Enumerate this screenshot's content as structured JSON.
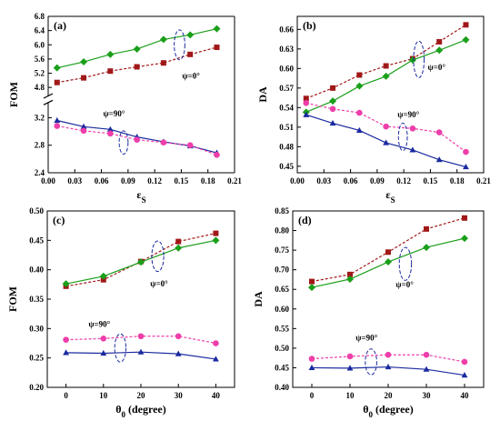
{
  "chart_data": [
    {
      "type": "line",
      "panel_label": "(a)",
      "xlabel": "εS",
      "ylabel": "FOM",
      "xlim": [
        0.0,
        0.21
      ],
      "x_ticks": [
        "0.00",
        "0.03",
        "0.06",
        "0.09",
        "0.12",
        "0.15",
        "0.18",
        "0.21"
      ],
      "y_broken_axis": true,
      "ylim_upper": [
        4.6,
        6.8
      ],
      "ylim_lower": [
        2.4,
        3.4
      ],
      "y_ticks_upper": [
        "4.8",
        "5.2",
        "5.6",
        "6.0",
        "6.4",
        "6.8"
      ],
      "y_ticks_lower": [
        "2.4",
        "2.8",
        "3.2"
      ],
      "x": [
        0.01,
        0.04,
        0.07,
        0.1,
        0.13,
        0.16,
        0.19
      ],
      "series": [
        {
          "group": "upper",
          "color": "#1a9f1a",
          "marker": "diamond",
          "dash": false,
          "values": [
            5.35,
            5.52,
            5.73,
            5.88,
            6.15,
            6.28,
            6.45
          ]
        },
        {
          "group": "upper",
          "color": "#a01818",
          "marker": "square",
          "dash": true,
          "values": [
            4.94,
            5.07,
            5.26,
            5.38,
            5.49,
            5.73,
            5.93
          ]
        },
        {
          "group": "lower",
          "color": "#1a2a9f",
          "marker": "triangle",
          "dash": false,
          "values": [
            3.16,
            3.07,
            3.03,
            2.92,
            2.85,
            2.79,
            2.69
          ]
        },
        {
          "group": "lower",
          "color": "#ee3eaa",
          "marker": "circle",
          "dash": true,
          "values": [
            3.08,
            3.01,
            2.97,
            2.88,
            2.84,
            2.8,
            2.66
          ]
        }
      ],
      "annotations": [
        {
          "text": "ψ=0°",
          "x": 0.151,
          "y": 5.05,
          "group": "upper"
        },
        {
          "text": "ψ=90°",
          "x": 0.062,
          "y": 3.22,
          "group": "lower"
        }
      ],
      "ellipses": [
        {
          "cx": 0.148,
          "cy": 6.0,
          "group": "upper",
          "rx": 0.006,
          "ry": 0.42
        },
        {
          "cx": 0.085,
          "cy": 2.84,
          "group": "lower",
          "rx": 0.005,
          "ry": 0.17
        }
      ]
    },
    {
      "type": "line",
      "panel_label": "(b)",
      "xlabel": "εS",
      "ylabel": "DA",
      "xlim": [
        0.0,
        0.21
      ],
      "x_ticks": [
        "0.00",
        "0.03",
        "0.06",
        "0.09",
        "0.12",
        "0.15",
        "0.18",
        "0.21"
      ],
      "ylim": [
        0.44,
        0.68
      ],
      "y_ticks": [
        "0.45",
        "0.48",
        "0.51",
        "0.54",
        "0.57",
        "0.60",
        "0.63",
        "0.66"
      ],
      "x": [
        0.01,
        0.04,
        0.07,
        0.1,
        0.13,
        0.16,
        0.19
      ],
      "series": [
        {
          "color": "#a01818",
          "marker": "square",
          "dash": true,
          "values": [
            0.554,
            0.57,
            0.59,
            0.604,
            0.615,
            0.641,
            0.667
          ]
        },
        {
          "color": "#1a9f1a",
          "marker": "diamond",
          "dash": false,
          "values": [
            0.533,
            0.55,
            0.573,
            0.588,
            0.613,
            0.628,
            0.644
          ]
        },
        {
          "color": "#ee3eaa",
          "marker": "circle",
          "dash": true,
          "values": [
            0.547,
            0.538,
            0.532,
            0.511,
            0.508,
            0.502,
            0.472
          ]
        },
        {
          "color": "#1a2a9f",
          "marker": "triangle",
          "dash": false,
          "values": [
            0.529,
            0.516,
            0.505,
            0.486,
            0.475,
            0.46,
            0.449
          ]
        }
      ],
      "annotations": [
        {
          "text": "ψ=0°",
          "x": 0.147,
          "y": 0.598
        },
        {
          "text": "ψ=90°",
          "x": 0.113,
          "y": 0.525
        }
      ],
      "ellipses": [
        {
          "cx": 0.137,
          "cy": 0.614,
          "rx": 0.006,
          "ry": 0.028
        },
        {
          "cx": 0.119,
          "cy": 0.495,
          "rx": 0.005,
          "ry": 0.021
        }
      ]
    },
    {
      "type": "line",
      "panel_label": "(c)",
      "xlabel": "θ0 (degree)",
      "ylabel": "FOM",
      "xlim": [
        -5,
        45
      ],
      "x_ticks": [
        "0",
        "10",
        "20",
        "30",
        "40"
      ],
      "ylim": [
        0.2,
        0.5
      ],
      "y_ticks": [
        "0.20",
        "0.25",
        "0.30",
        "0.35",
        "0.40",
        "0.45",
        "0.50"
      ],
      "x": [
        0,
        10,
        20,
        30,
        40
      ],
      "series": [
        {
          "color": "#a01818",
          "marker": "square",
          "dash": true,
          "values": [
            0.372,
            0.383,
            0.414,
            0.448,
            0.462
          ]
        },
        {
          "color": "#1a9f1a",
          "marker": "diamond",
          "dash": false,
          "values": [
            0.376,
            0.389,
            0.413,
            0.437,
            0.45
          ]
        },
        {
          "color": "#ee3eaa",
          "marker": "circle",
          "dash": true,
          "values": [
            0.281,
            0.283,
            0.287,
            0.287,
            0.275
          ]
        },
        {
          "color": "#1a2a9f",
          "marker": "triangle",
          "dash": false,
          "values": [
            0.259,
            0.258,
            0.26,
            0.257,
            0.248
          ]
        }
      ],
      "annotations": [
        {
          "text": "ψ=0°",
          "x": 22.5,
          "y": 0.372
        },
        {
          "text": "ψ=90°",
          "x": 6.0,
          "y": 0.303
        }
      ],
      "ellipses": [
        {
          "cx": 24.5,
          "cy": 0.423,
          "rx": 1.6,
          "ry": 0.026
        },
        {
          "cx": 14.5,
          "cy": 0.267,
          "rx": 1.5,
          "ry": 0.024
        }
      ]
    },
    {
      "type": "line",
      "panel_label": "(d)",
      "xlabel": "θ0 (degree)",
      "ylabel": "DA",
      "xlim": [
        -5,
        45
      ],
      "x_ticks": [
        "0",
        "10",
        "20",
        "30",
        "40"
      ],
      "ylim": [
        0.4,
        0.85
      ],
      "y_ticks": [
        "0.40",
        "0.45",
        "0.50",
        "0.55",
        "0.60",
        "0.65",
        "0.70",
        "0.75",
        "0.80",
        "0.85"
      ],
      "x": [
        0,
        10,
        20,
        30,
        40
      ],
      "series": [
        {
          "color": "#a01818",
          "marker": "square",
          "dash": true,
          "values": [
            0.67,
            0.688,
            0.745,
            0.804,
            0.832
          ]
        },
        {
          "color": "#1a9f1a",
          "marker": "diamond",
          "dash": false,
          "values": [
            0.655,
            0.676,
            0.72,
            0.757,
            0.78
          ]
        },
        {
          "color": "#ee3eaa",
          "marker": "circle",
          "dash": true,
          "values": [
            0.473,
            0.479,
            0.483,
            0.483,
            0.465
          ]
        },
        {
          "color": "#1a2a9f",
          "marker": "triangle",
          "dash": false,
          "values": [
            0.45,
            0.449,
            0.452,
            0.446,
            0.431
          ]
        }
      ],
      "annotations": [
        {
          "text": "ψ=0°",
          "x": 22.0,
          "y": 0.655
        },
        {
          "text": "ψ=90°",
          "x": 11.5,
          "y": 0.52
        }
      ],
      "ellipses": [
        {
          "cx": 24.5,
          "cy": 0.715,
          "rx": 1.6,
          "ry": 0.042
        },
        {
          "cx": 15.5,
          "cy": 0.465,
          "rx": 1.5,
          "ry": 0.033
        }
      ]
    }
  ]
}
